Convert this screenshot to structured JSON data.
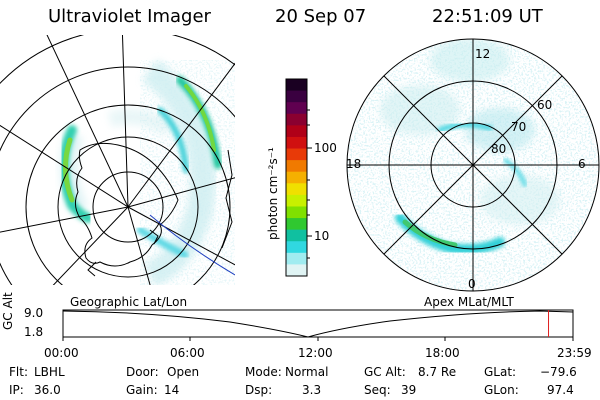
{
  "header": {
    "instrument": "Ultraviolet Imager",
    "date": "20 Sep 07",
    "time": "22:51:09 UT"
  },
  "left_map": {
    "label": "Geographic Lat/Lon"
  },
  "right_map": {
    "label": "Apex MLat/MLT",
    "mlt_labels": {
      "top": "12",
      "right": "6",
      "bottom": "0",
      "left": "18"
    },
    "lat_labels": [
      "60",
      "70",
      "80"
    ]
  },
  "colorbar": {
    "unit_label": "photon cm⁻²s⁻¹",
    "ticks": [
      "100",
      "10"
    ],
    "colors": [
      "#1a0022",
      "#3a0040",
      "#600050",
      "#8a0030",
      "#b00018",
      "#d01010",
      "#e83a08",
      "#f07a00",
      "#f5b000",
      "#f0e000",
      "#c8f000",
      "#80e000",
      "#30c830",
      "#10c0a0",
      "#30d8e0",
      "#a0ecf0",
      "#e0f4f4"
    ]
  },
  "altitude_plot": {
    "axis_label": "GC Alt",
    "y_ticks": [
      "9.0",
      "1.8"
    ],
    "x_ticks": [
      "00:00",
      "06:00",
      "12:00",
      "18:00",
      "23:59"
    ],
    "marker_time_fraction": 0.952
  },
  "info": {
    "filter": {
      "label": "Flt:",
      "value": "LBHL"
    },
    "ip": {
      "label": "IP:",
      "value": "36.0"
    },
    "door": {
      "label": "Door:",
      "value": "Open"
    },
    "gain": {
      "label": "Gain:",
      "value": "14"
    },
    "mode": {
      "label": "Mode:",
      "value": "Normal"
    },
    "dsp": {
      "label": "Dsp:",
      "value": "3.3"
    },
    "gc_alt": {
      "label": "GC Alt:",
      "value": "8.7 Re"
    },
    "seq": {
      "label": "Seq:",
      "value": "39"
    },
    "glat": {
      "label": "GLat:",
      "value": "−79.6"
    },
    "glon": {
      "label": "GLon:",
      "value": "97.4"
    }
  }
}
